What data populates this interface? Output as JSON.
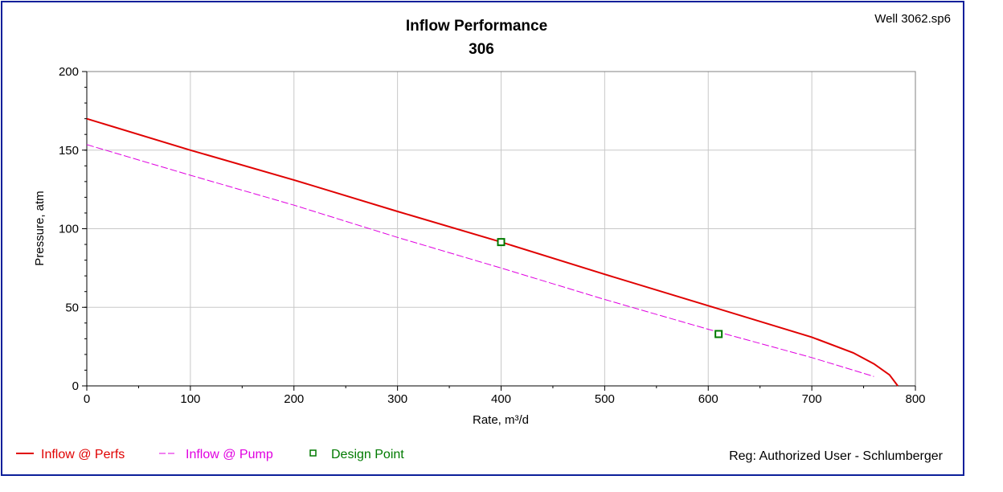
{
  "file_label": "Well 3062.sp6",
  "reg_label": "Reg: Authorized User - Schlumberger",
  "colors": {
    "frame": "#0b1f9a",
    "perfs": "#e00000",
    "pump": "#e000e0",
    "design": "#007a00",
    "grid": "#c8c8c8"
  },
  "chart_data": {
    "type": "line",
    "title": "Inflow Performance",
    "subtitle": "306",
    "xlabel": "Rate, m³/d",
    "ylabel": "Pressure, atm",
    "xlim": [
      0,
      800
    ],
    "ylim": [
      0,
      200
    ],
    "x_ticks": [
      "0",
      "100",
      "200",
      "300",
      "400",
      "500",
      "600",
      "700",
      "800"
    ],
    "y_ticks": [
      "0",
      "50",
      "100",
      "150",
      "200"
    ],
    "grid": true,
    "legend_position": "bottom",
    "series": [
      {
        "name": "Inflow @ Perfs",
        "style": "solid",
        "x": [
          0,
          100,
          200,
          300,
          400,
          500,
          600,
          700,
          740,
          760,
          775,
          783
        ],
        "y": [
          170,
          150,
          131,
          111,
          91.5,
          71,
          51,
          31,
          21,
          14,
          7,
          0
        ]
      },
      {
        "name": "Inflow @ Pump",
        "style": "dashed",
        "x": [
          0,
          100,
          200,
          300,
          400,
          500,
          600,
          700,
          760
        ],
        "y": [
          153.5,
          134,
          115,
          94.5,
          75,
          55,
          36,
          18,
          6
        ]
      },
      {
        "name": "Design Point",
        "style": "marker",
        "x": [
          400,
          610
        ],
        "y": [
          91.5,
          33
        ]
      }
    ]
  }
}
